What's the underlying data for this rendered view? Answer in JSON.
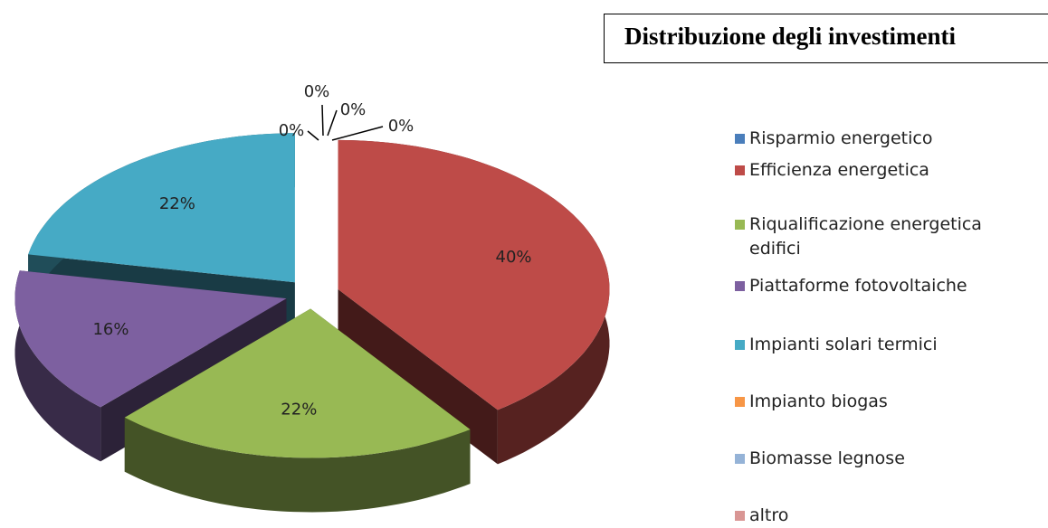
{
  "chart_data": {
    "type": "pie3d",
    "title": "Distribuzione degli investimenti",
    "categories": [
      "Risparmio energetico",
      "Efficienza energetica",
      "Riqualificazione energetica edifici",
      "Piattaforme fotovoltaiche",
      "Impianti solari termici",
      "Impianto biogas",
      "Biomasse legnose",
      "altro"
    ],
    "values": [
      0,
      40,
      22,
      16,
      22,
      0,
      0,
      0
    ],
    "value_labels": [
      "0%",
      "40%",
      "22%",
      "16%",
      "22%",
      "0%",
      "0%",
      "0%"
    ],
    "colors": [
      "#4a7ebb",
      "#be4b48",
      "#98b954",
      "#7d60a0",
      "#46aac5",
      "#f79646",
      "#95b3d7",
      "#d99694"
    ],
    "legend": "right"
  }
}
